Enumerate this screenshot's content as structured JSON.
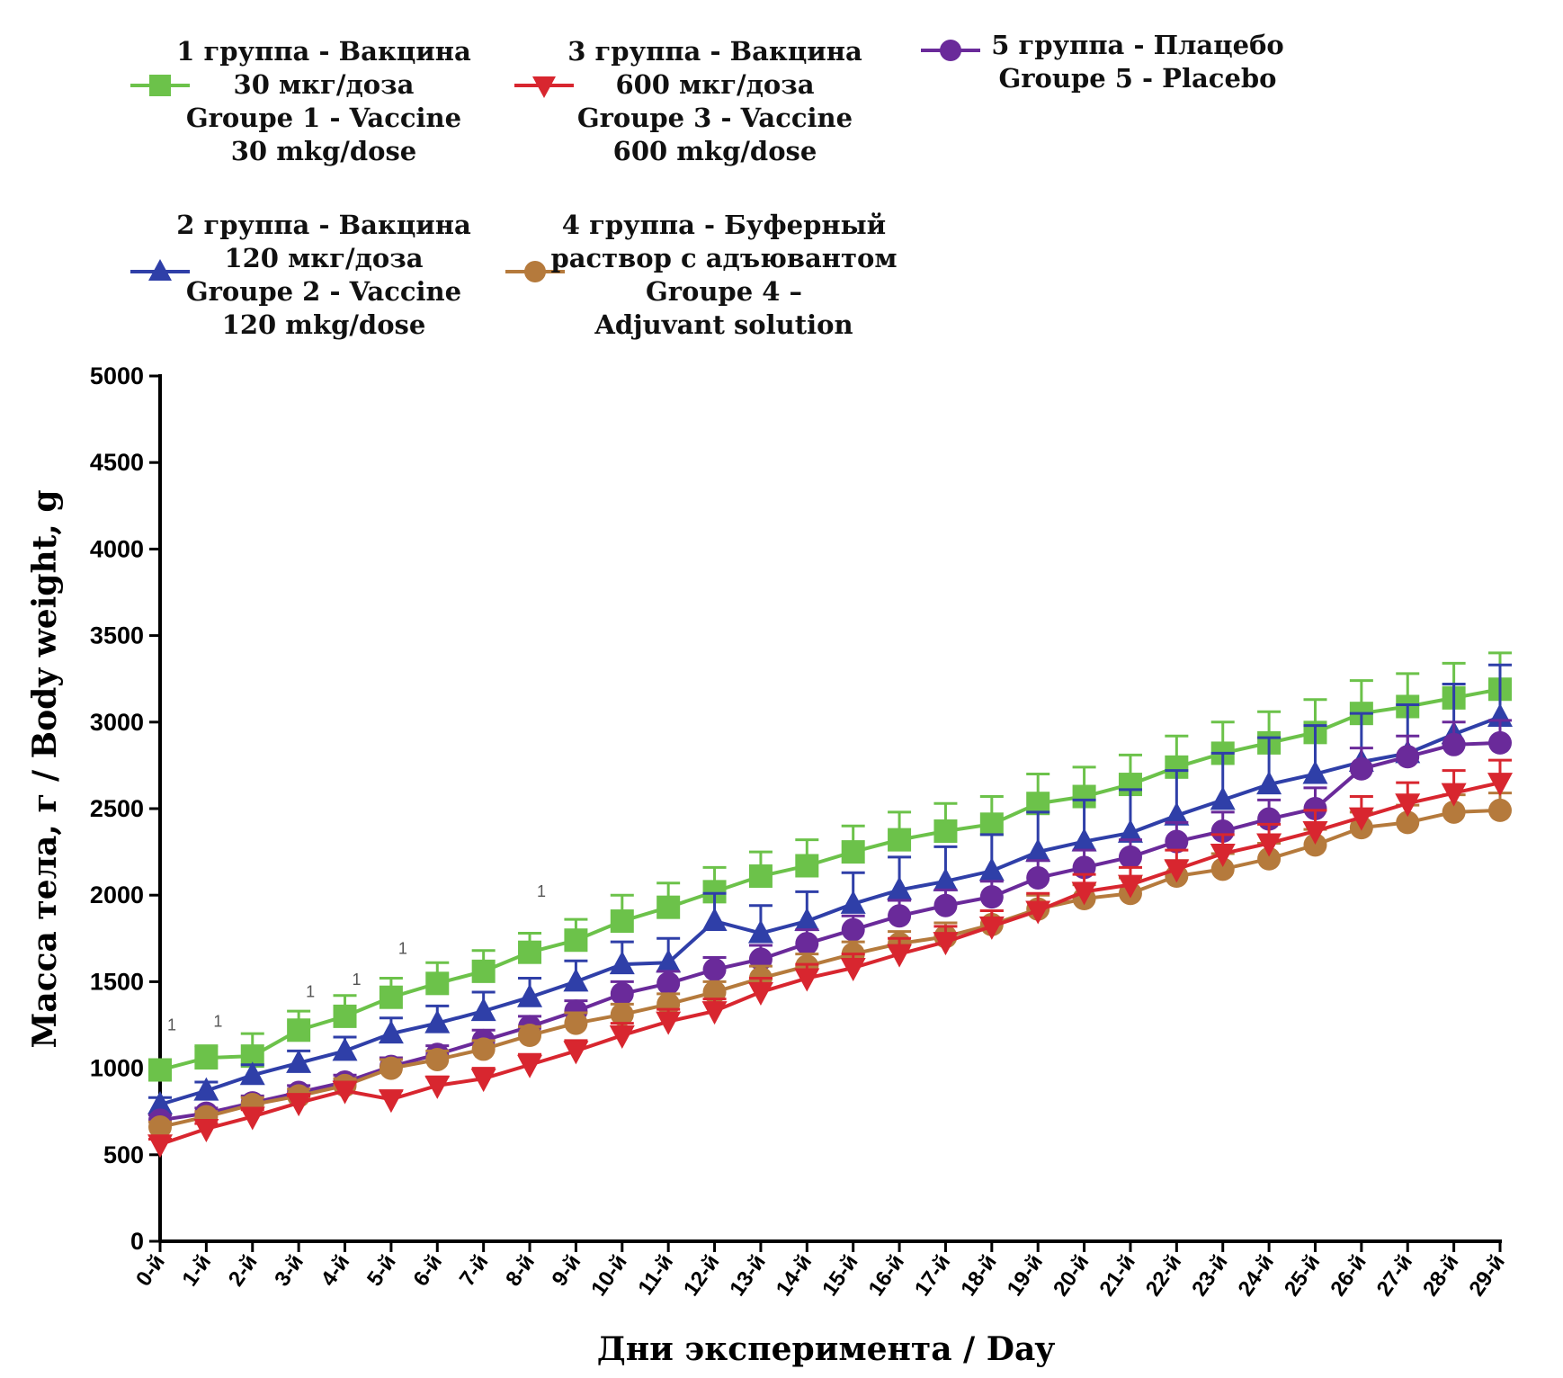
{
  "chart_data": {
    "type": "line",
    "xlabel": "Дни эксперимента / Day",
    "ylabel": "Масса тела, г / Body weight, g",
    "ylim": [
      0,
      5000
    ],
    "yticks": [
      0,
      500,
      1000,
      1500,
      2000,
      2500,
      3000,
      3500,
      4000,
      4500,
      5000
    ],
    "categories": [
      "0-й",
      "1-й",
      "2-й",
      "3-й",
      "4-й",
      "5-й",
      "6-й",
      "7-й",
      "8-й",
      "9-й",
      "10-й",
      "11-й",
      "12-й",
      "13-й",
      "14-й",
      "15-й",
      "16-й",
      "17-й",
      "18-й",
      "19-й",
      "20-й",
      "21-й",
      "22-й",
      "23-й",
      "24-й",
      "25-й",
      "26-й",
      "27-й",
      "28-й",
      "29-й"
    ],
    "series": [
      {
        "name": "Group 1",
        "legend": [
          "1 группа - Вакцина",
          "30 мкг/доза",
          "Groupe 1 - Vaccine",
          "30 mkg/dose"
        ],
        "color": "#6cc24a",
        "marker": "square",
        "values": [
          990,
          1060,
          1070,
          1220,
          1300,
          1410,
          1490,
          1560,
          1670,
          1740,
          1850,
          1930,
          2020,
          2110,
          2170,
          2250,
          2320,
          2370,
          2410,
          2530,
          2570,
          2640,
          2740,
          2820,
          2880,
          2940,
          3050,
          3090,
          3140,
          3190
        ],
        "errors": [
          60,
          70,
          130,
          110,
          120,
          110,
          120,
          120,
          110,
          120,
          150,
          140,
          140,
          140,
          150,
          150,
          160,
          160,
          160,
          170,
          170,
          170,
          180,
          180,
          180,
          190,
          190,
          190,
          200,
          210
        ]
      },
      {
        "name": "Group 2",
        "legend": [
          "2 группа - Вакцина",
          "120 мкг/доза",
          "Groupe 2 - Vaccine",
          "120 mkg/dose"
        ],
        "color": "#2f3fa8",
        "marker": "triangle-up",
        "values": [
          790,
          870,
          960,
          1030,
          1100,
          1200,
          1260,
          1330,
          1410,
          1500,
          1600,
          1610,
          1850,
          1780,
          1850,
          1950,
          2030,
          2080,
          2140,
          2250,
          2310,
          2360,
          2460,
          2550,
          2640,
          2700,
          2770,
          2820,
          2930,
          3030
        ],
        "errors": [
          40,
          50,
          60,
          70,
          80,
          90,
          100,
          110,
          110,
          120,
          130,
          140,
          160,
          160,
          170,
          180,
          190,
          200,
          210,
          230,
          240,
          250,
          260,
          270,
          270,
          280,
          280,
          280,
          290,
          300
        ]
      },
      {
        "name": "Group 3",
        "legend": [
          "3 группа - Вакцина",
          "600 мкг/доза",
          "Groupe 3 - Vaccine",
          "600 mkg/dose"
        ],
        "color": "#d8262f",
        "marker": "triangle-down",
        "values": [
          560,
          650,
          720,
          800,
          870,
          820,
          900,
          940,
          1020,
          1100,
          1190,
          1270,
          1330,
          1440,
          1520,
          1580,
          1660,
          1730,
          1820,
          1910,
          2020,
          2060,
          2150,
          2240,
          2300,
          2370,
          2450,
          2530,
          2590,
          2650
        ],
        "errors": [
          30,
          30,
          40,
          40,
          50,
          50,
          50,
          60,
          60,
          60,
          70,
          70,
          70,
          80,
          80,
          80,
          90,
          90,
          90,
          100,
          100,
          100,
          110,
          110,
          110,
          120,
          120,
          120,
          130,
          130
        ]
      },
      {
        "name": "Group 4",
        "legend": [
          "4 группа - Буферный",
          "раствор с адъювантом",
          "Groupe 4 –",
          "Adjuvant solution"
        ],
        "color": "#b57a3c",
        "marker": "circle",
        "values": [
          660,
          720,
          790,
          840,
          900,
          1000,
          1050,
          1110,
          1190,
          1260,
          1310,
          1370,
          1440,
          1520,
          1590,
          1660,
          1720,
          1760,
          1830,
          1920,
          1980,
          2010,
          2110,
          2150,
          2210,
          2290,
          2390,
          2420,
          2480,
          2490
        ],
        "errors": [
          30,
          30,
          40,
          40,
          40,
          50,
          50,
          50,
          50,
          60,
          60,
          60,
          60,
          70,
          70,
          70,
          70,
          80,
          80,
          80,
          80,
          90,
          90,
          90,
          90,
          90,
          90,
          100,
          100,
          100
        ]
      },
      {
        "name": "Group 5",
        "legend": [
          "5 группа - Плацебо",
          "Groupe 5 - Placebo"
        ],
        "color": "#6a2a9a",
        "marker": "circle",
        "values": [
          700,
          740,
          800,
          860,
          920,
          1010,
          1080,
          1160,
          1240,
          1330,
          1430,
          1490,
          1570,
          1630,
          1720,
          1800,
          1880,
          1940,
          1990,
          2100,
          2160,
          2220,
          2310,
          2370,
          2440,
          2500,
          2730,
          2800,
          2870,
          2880
        ],
        "errors": [
          30,
          30,
          40,
          40,
          40,
          50,
          50,
          60,
          60,
          60,
          70,
          70,
          70,
          80,
          80,
          80,
          90,
          90,
          90,
          100,
          100,
          100,
          110,
          110,
          110,
          120,
          120,
          120,
          130,
          130
        ]
      }
    ],
    "annotations": [
      {
        "category": "0-й",
        "text": "1",
        "y": 1220
      },
      {
        "category": "1-й",
        "text": "1",
        "y": 1240
      },
      {
        "category": "3-й",
        "text": "1",
        "y": 1410
      },
      {
        "category": "4-й",
        "text": "1",
        "y": 1480
      },
      {
        "category": "5-й",
        "text": "1",
        "y": 1660
      },
      {
        "category": "8-й",
        "text": "1",
        "y": 1990
      }
    ]
  }
}
